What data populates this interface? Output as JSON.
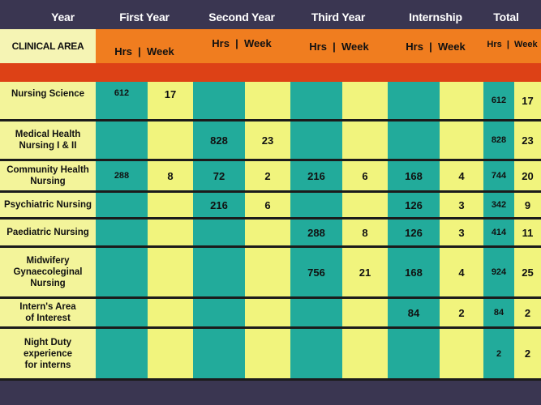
{
  "header": {
    "year": "Year",
    "first_year": "First Year",
    "second_year": "Second Year",
    "third_year": "Third Year",
    "internship": "Internship",
    "total": "Total"
  },
  "subheader": {
    "clinical_area": "CLINICAL AREA",
    "hrs_week": "Hrs  |  Week",
    "total_hrs_week": "Hrs  |  Week"
  },
  "colors": {
    "background": "#3a3651",
    "orange": "#f07d1f",
    "red": "#dd4116",
    "teal": "#22ab9b",
    "yellow": "#f1f47d"
  },
  "rows": [
    {
      "area": "Nursing Science",
      "y1_hrs": "612",
      "y1_week": "17",
      "y2_hrs": "",
      "y2_week": "",
      "y3_hrs": "",
      "y3_week": "",
      "int_hrs": "",
      "int_week": "",
      "tot_hrs": "612",
      "tot_week": "17"
    },
    {
      "area": "Medical Health\nNursing I & II",
      "y1_hrs": "",
      "y1_week": "",
      "y2_hrs": "828",
      "y2_week": "23",
      "y3_hrs": "",
      "y3_week": "",
      "int_hrs": "",
      "int_week": "",
      "tot_hrs": "828",
      "tot_week": "23"
    },
    {
      "area": "Community Health\nNursing",
      "y1_hrs": "288",
      "y1_week": "8",
      "y2_hrs": "72",
      "y2_week": "2",
      "y3_hrs": "216",
      "y3_week": "6",
      "int_hrs": "168",
      "int_week": "4",
      "tot_hrs": "744",
      "tot_week": "20"
    },
    {
      "area": "Psychiatric Nursing",
      "y1_hrs": "",
      "y1_week": "",
      "y2_hrs": "216",
      "y2_week": "6",
      "y3_hrs": "",
      "y3_week": "",
      "int_hrs": "126",
      "int_week": "3",
      "tot_hrs": "342",
      "tot_week": "9"
    },
    {
      "area": "Paediatric Nursing",
      "y1_hrs": "",
      "y1_week": "",
      "y2_hrs": "",
      "y2_week": "",
      "y3_hrs": "288",
      "y3_week": "8",
      "int_hrs": "126",
      "int_week": "3",
      "tot_hrs": "414",
      "tot_week": "11"
    },
    {
      "area": "Midwifery\nGynaecoleginal\nNursing",
      "y1_hrs": "",
      "y1_week": "",
      "y2_hrs": "",
      "y2_week": "",
      "y3_hrs": "756",
      "y3_week": "21",
      "int_hrs": "168",
      "int_week": "4",
      "tot_hrs": "924",
      "tot_week": "25"
    },
    {
      "area": "Intern's Area\nof Interest",
      "y1_hrs": "",
      "y1_week": "",
      "y2_hrs": "",
      "y2_week": "",
      "y3_hrs": "",
      "y3_week": "",
      "int_hrs": "84",
      "int_week": "2",
      "tot_hrs": "84",
      "tot_week": "2"
    },
    {
      "area": "Night Duty\nexperience\nfor interns",
      "y1_hrs": "",
      "y1_week": "",
      "y2_hrs": "",
      "y2_week": "",
      "y3_hrs": "",
      "y3_week": "",
      "int_hrs": "",
      "int_week": "",
      "tot_hrs": "2",
      "tot_week": "2"
    }
  ]
}
